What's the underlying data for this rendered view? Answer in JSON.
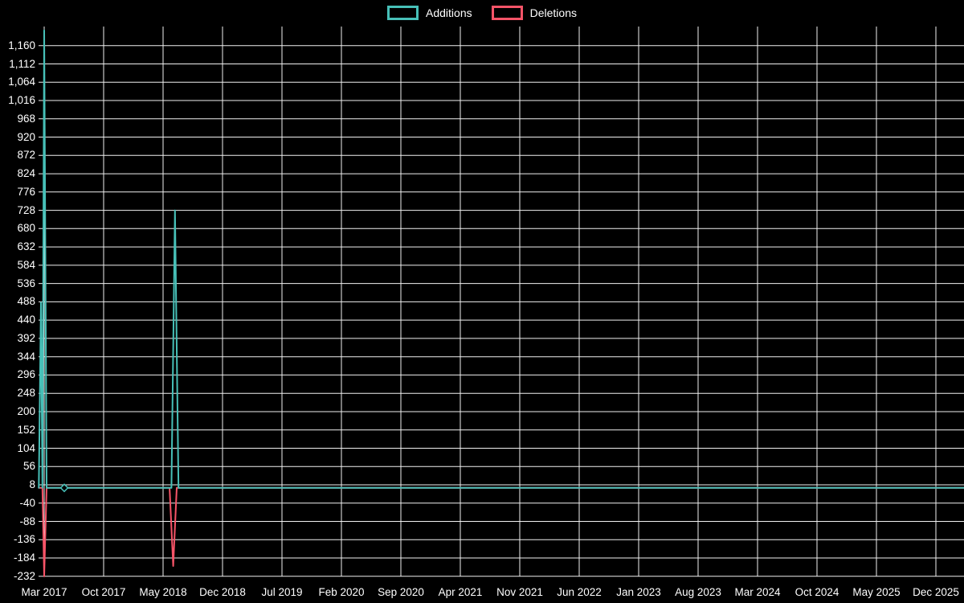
{
  "legend": {
    "items": [
      {
        "label": "Additions",
        "color": "#47c0b8"
      },
      {
        "label": "Deletions",
        "color": "#f75468"
      }
    ]
  },
  "chart_data": {
    "type": "line",
    "title": "",
    "legend_position": "top-center",
    "background_color": "#000000",
    "grid": true,
    "grid_color": "#f0f0f0",
    "axis_text_color": "#ffffff",
    "x_unit": "tick-index (0 = Mar 2017, ticks spaced 7 months apart)",
    "x_ticks": [
      "Mar 2017",
      "Oct 2017",
      "May 2018",
      "Dec 2018",
      "Jul 2019",
      "Feb 2020",
      "Sep 2020",
      "Apr 2021",
      "Nov 2021",
      "Jun 2022",
      "Jan 2023",
      "Aug 2023",
      "Mar 2024",
      "Oct 2024",
      "May 2025",
      "Dec 2025"
    ],
    "y_min": -232,
    "y_max": 1160,
    "y_step": 48,
    "y_ticks": [
      "1,160",
      "1,112",
      "1,064",
      "1,016",
      "968",
      "920",
      "872",
      "824",
      "776",
      "728",
      "680",
      "632",
      "584",
      "536",
      "488",
      "440",
      "392",
      "344",
      "296",
      "248",
      "200",
      "152",
      "104",
      "56",
      "8",
      "-40",
      "-88",
      "-136",
      "-184",
      "-232"
    ],
    "series": [
      {
        "name": "Additions",
        "color": "#47c0b8",
        "points": [
          [
            -0.09,
            0
          ],
          [
            -0.054,
            486
          ],
          [
            -0.03,
            0
          ],
          [
            0,
            1200
          ],
          [
            0.04,
            0
          ],
          [
            2.14,
            0
          ],
          [
            2.2,
            728
          ],
          [
            2.26,
            0
          ],
          [
            15.47,
            0
          ]
        ]
      },
      {
        "name": "Deletions",
        "color": "#f75468",
        "points": [
          [
            -0.09,
            0
          ],
          [
            -0.03,
            0
          ],
          [
            0,
            -232
          ],
          [
            0.04,
            0
          ],
          [
            2.11,
            0
          ],
          [
            2.17,
            -205
          ],
          [
            2.23,
            0
          ],
          [
            15.47,
            0
          ]
        ]
      }
    ],
    "markers": [
      {
        "series": "Additions",
        "x": 0.338,
        "value": 0
      }
    ]
  }
}
